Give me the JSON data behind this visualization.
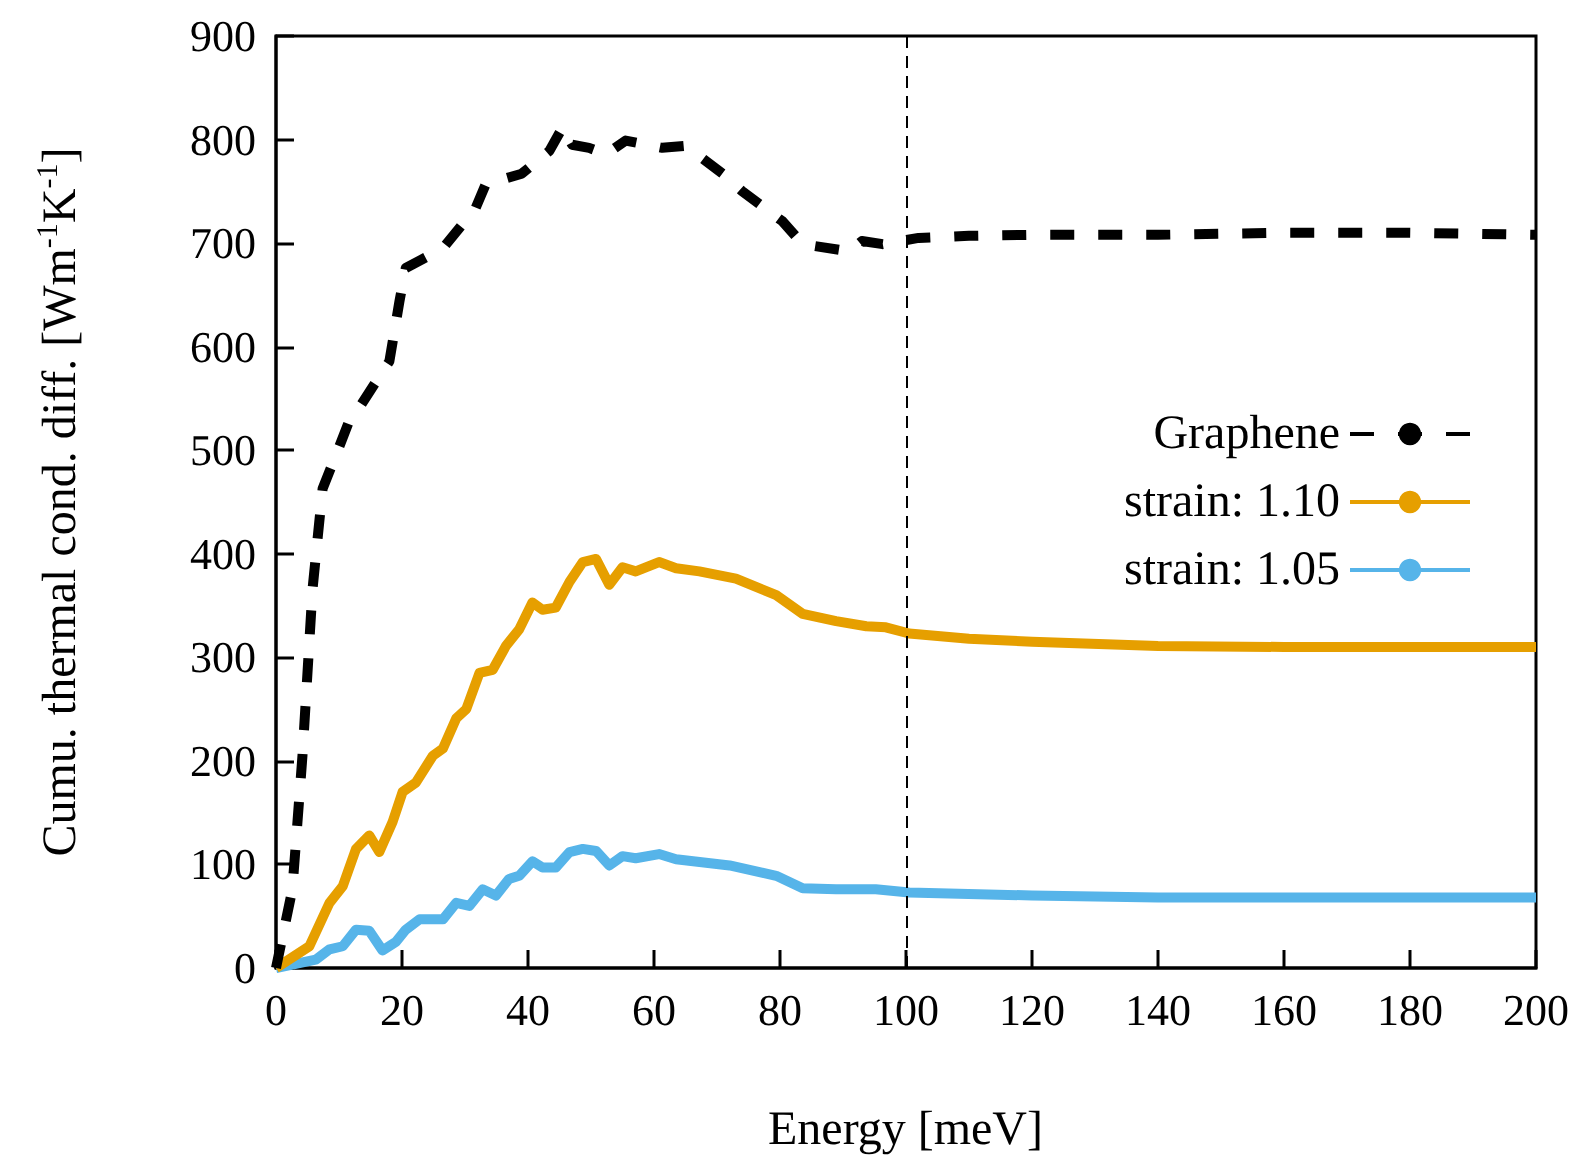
{
  "chart_data": {
    "type": "line",
    "xlabel": "Energy [meV]",
    "ylabel": "Cumu. thermal cond. diff. [Wm$^{-1}$K$^{-1}$]",
    "xlim": [
      0,
      200
    ],
    "xticks": [
      0,
      20,
      40,
      60,
      80,
      100,
      120,
      140,
      160,
      180,
      200
    ],
    "ylim": [
      0,
      900
    ],
    "yticks": [
      0,
      100,
      200,
      300,
      400,
      500,
      600,
      700,
      800,
      900
    ],
    "grid": false,
    "legend": "right",
    "marker": "none",
    "ref_lines": [
      {
        "axis": "x",
        "value": 100,
        "color": "#000000",
        "line_style": "dashed"
      }
    ],
    "series": [
      {
        "name": "Graphene",
        "color": "#000000",
        "line_style": "dashed",
        "x": [
          0,
          2.6,
          4.2,
          5.8,
          7.4,
          9.5,
          11.6,
          13.2,
          18,
          19.6,
          20.6,
          26.5,
          31.7,
          33.3,
          39,
          43.4,
          45.5,
          47,
          49.7,
          52.4,
          55.5,
          61.3,
          65,
          70.9,
          74,
          80.4,
          83.6,
          91,
          93,
          96.3,
          102,
          110,
          120,
          140,
          160,
          180,
          200
        ],
        "values": [
          0,
          76,
          205,
          366,
          463,
          495,
          528,
          541,
          586,
          644,
          676,
          695,
          734,
          757,
          767,
          789,
          812,
          795,
          792,
          786,
          799,
          792,
          794,
          767,
          750,
          721,
          699,
          692,
          702,
          699,
          705,
          707,
          708,
          708,
          710,
          710,
          708
        ]
      },
      {
        "name": "strain: 1.10",
        "color": "#e69f00",
        "line_style": "solid",
        "x": [
          0,
          5.3,
          8.5,
          10.6,
          12.7,
          14.8,
          16.4,
          18.5,
          20.1,
          22.2,
          24.9,
          26.5,
          28.6,
          30.2,
          32.3,
          34.4,
          36.5,
          38.6,
          40.7,
          42.3,
          44.4,
          46.6,
          48.7,
          50.8,
          52.9,
          55,
          57.1,
          60.8,
          63.5,
          67.2,
          73,
          79.4,
          83.6,
          88.9,
          93.7,
          96.8,
          100.5,
          110,
          120,
          140,
          160,
          200
        ],
        "values": [
          0,
          21,
          63,
          79,
          115,
          128,
          112,
          141,
          170,
          179,
          205,
          212,
          241,
          250,
          285,
          288,
          311,
          327,
          353,
          346,
          348,
          373,
          392,
          395,
          370,
          387,
          383,
          392,
          386,
          383,
          376,
          360,
          342,
          335,
          330,
          329,
          323,
          318,
          315,
          311,
          310,
          310
        ]
      },
      {
        "name": "strain: 1.05",
        "color": "#56b4e9",
        "line_style": "solid",
        "x": [
          0,
          6.3,
          8.5,
          10.6,
          12.7,
          14.8,
          16.9,
          19,
          20.6,
          22.8,
          26.5,
          28.6,
          30.7,
          32.8,
          34.9,
          37,
          38.6,
          40.7,
          42.3,
          44.4,
          46.6,
          48.7,
          50.8,
          52.9,
          55,
          57.1,
          60.8,
          63.5,
          72,
          79.4,
          83.6,
          88.9,
          95.2,
          100.5,
          120,
          140,
          200
        ],
        "values": [
          0,
          8,
          18,
          21,
          37,
          36,
          17,
          25,
          37,
          47,
          47,
          63,
          60,
          76,
          70,
          86,
          89,
          103,
          97,
          97,
          112,
          115,
          113,
          99,
          108,
          106,
          110,
          105,
          99,
          89,
          77,
          76,
          76,
          73,
          70,
          68,
          68
        ]
      }
    ]
  }
}
